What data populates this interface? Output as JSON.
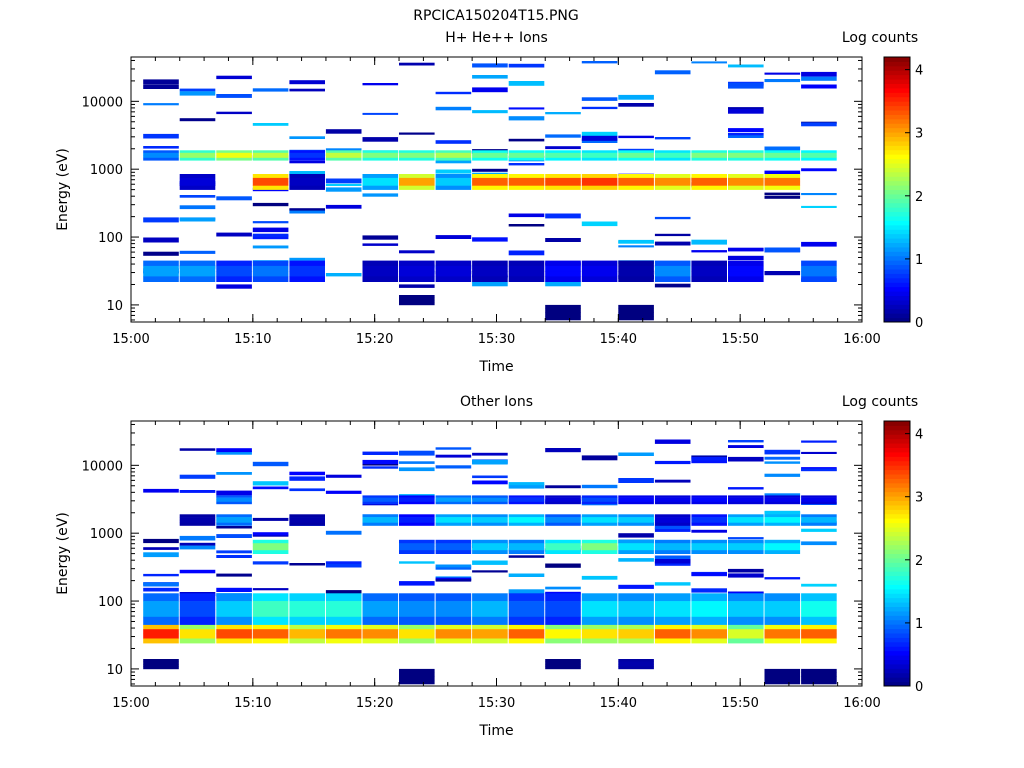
{
  "figure": {
    "title": "RPCICA150204T15.PNG"
  },
  "colors": {
    "colormap": [
      "#000080",
      "#0000ff",
      "#0080ff",
      "#00ffff",
      "#80ff80",
      "#ffff00",
      "#ff8000",
      "#ff0000",
      "#800000"
    ],
    "background": "#ffffff",
    "axes": "#000000"
  },
  "chart_data": [
    {
      "type": "heatmap",
      "title": "H+ He++ Ions",
      "xlabel": "Time",
      "ylabel": "Energy (eV)",
      "yscale": "log",
      "ylim": [
        5.6,
        45000
      ],
      "xlim": [
        "15:00",
        "16:00"
      ],
      "x_ticks": [
        "15:00",
        "15:10",
        "15:20",
        "15:30",
        "15:40",
        "15:50",
        "16:00"
      ],
      "y_ticks": [
        "10",
        "100",
        "1000",
        "10000"
      ],
      "colorbar": {
        "label": "Log counts",
        "range": [
          0,
          4.2
        ],
        "ticks": [
          "0",
          "1",
          "2",
          "3",
          "4"
        ]
      },
      "time_bins_min": [
        2.5,
        5.5,
        8.5,
        11.5,
        14.5,
        17.5,
        20.5,
        23.5,
        26.5,
        29.5,
        32.5,
        35.5,
        38.5,
        41.5,
        44.5,
        47.5,
        50.5,
        53.5,
        56.5
      ],
      "bands": [
        {
          "emin": 1350,
          "emax": 1900,
          "values": [
            1.2,
            2.4,
            2.8,
            2.6,
            0.8,
            2.6,
            2.3,
            2.3,
            2.5,
            2.2,
            2.2,
            2.1,
            2.0,
            2.2,
            2.0,
            2.3,
            2.3,
            2.2,
            2.1
          ]
        },
        {
          "emin": 500,
          "emax": 850,
          "values": [
            null,
            0.4,
            null,
            3.7,
            0.3,
            null,
            1.6,
            3.3,
            1.5,
            3.6,
            3.6,
            3.7,
            3.8,
            3.6,
            3.4,
            3.6,
            3.4,
            3.5,
            null
          ]
        },
        {
          "emin": 22,
          "emax": 45,
          "values": [
            1.3,
            1.3,
            0.9,
            1.1,
            0.8,
            null,
            0.3,
            0.4,
            0.4,
            0.3,
            0.3,
            0.6,
            0.5,
            0.2,
            1.2,
            0.3,
            0.6,
            null,
            1.1
          ]
        },
        {
          "emin": 10,
          "emax": 14,
          "values": [
            null,
            null,
            null,
            null,
            null,
            null,
            null,
            0.0,
            null,
            null,
            null,
            null,
            null,
            null,
            null,
            null,
            null,
            null,
            null
          ]
        },
        {
          "emin": 6,
          "emax": 10,
          "values": [
            null,
            null,
            null,
            null,
            null,
            null,
            null,
            null,
            null,
            null,
            null,
            0.0,
            null,
            0.0,
            null,
            null,
            null,
            null,
            null
          ]
        }
      ],
      "sparse_rows": "random low-count (0–1.5) narrow energy rows across all time bins from ~20 eV to ~40000 eV"
    },
    {
      "type": "heatmap",
      "title": "Other Ions",
      "xlabel": "Time",
      "ylabel": "Energy (eV)",
      "yscale": "log",
      "ylim": [
        5.6,
        45000
      ],
      "xlim": [
        "15:00",
        "16:00"
      ],
      "x_ticks": [
        "15:00",
        "15:10",
        "15:20",
        "15:30",
        "15:40",
        "15:50",
        "16:00"
      ],
      "y_ticks": [
        "10",
        "100",
        "1000",
        "10000"
      ],
      "colorbar": {
        "label": "Log counts",
        "range": [
          0,
          4.2
        ],
        "ticks": [
          "0",
          "1",
          "2",
          "3",
          "4"
        ]
      },
      "time_bins_min": [
        2.5,
        5.5,
        8.5,
        11.5,
        14.5,
        17.5,
        20.5,
        23.5,
        26.5,
        29.5,
        32.5,
        35.5,
        38.5,
        41.5,
        44.5,
        47.5,
        50.5,
        53.5,
        56.5
      ],
      "bands": [
        {
          "emin": 24,
          "emax": 45,
          "values": [
            3.9,
            3.0,
            3.7,
            3.6,
            3.2,
            3.5,
            3.4,
            3.0,
            3.4,
            3.3,
            3.6,
            2.9,
            3.0,
            3.1,
            3.6,
            3.4,
            2.7,
            3.5,
            3.6
          ]
        },
        {
          "emin": 45,
          "emax": 130,
          "values": [
            1.3,
            0.9,
            1.5,
            2.0,
            1.9,
            1.9,
            1.3,
            1.2,
            1.2,
            1.4,
            1.0,
            0.9,
            1.6,
            1.5,
            1.6,
            1.7,
            1.5,
            1.5,
            1.8
          ]
        },
        {
          "emin": 500,
          "emax": 800,
          "values": [
            null,
            null,
            null,
            2.3,
            null,
            null,
            null,
            1.0,
            1.0,
            1.5,
            1.4,
            2.0,
            2.3,
            1.6,
            1.4,
            1.5,
            1.5,
            1.7,
            null
          ]
        },
        {
          "emin": 1300,
          "emax": 1900,
          "values": [
            null,
            0.2,
            1.3,
            null,
            0.2,
            null,
            1.4,
            0.7,
            1.6,
            1.5,
            1.7,
            1.2,
            1.6,
            1.5,
            0.4,
            0.8,
            1.6,
            1.7,
            1.4
          ]
        },
        {
          "emin": 2700,
          "emax": 3600,
          "values": [
            null,
            null,
            1.2,
            null,
            null,
            null,
            1.0,
            0.7,
            1.3,
            1.2,
            0.8,
            0.4,
            0.9,
            0.6,
            0.5,
            0.6,
            0.5,
            0.5,
            0.5
          ]
        },
        {
          "emin": 10,
          "emax": 14,
          "values": [
            0.0,
            null,
            null,
            null,
            null,
            null,
            null,
            null,
            null,
            null,
            null,
            0.0,
            null,
            0.2,
            null,
            null,
            null,
            null,
            null
          ]
        },
        {
          "emin": 6,
          "emax": 10,
          "values": [
            null,
            null,
            null,
            null,
            null,
            null,
            null,
            0.0,
            null,
            null,
            null,
            null,
            null,
            null,
            null,
            null,
            null,
            0.0,
            0.0
          ]
        }
      ],
      "sparse_rows": "random low-count (0–1.5) narrow energy rows from ~130 eV to ~25000 eV"
    }
  ]
}
